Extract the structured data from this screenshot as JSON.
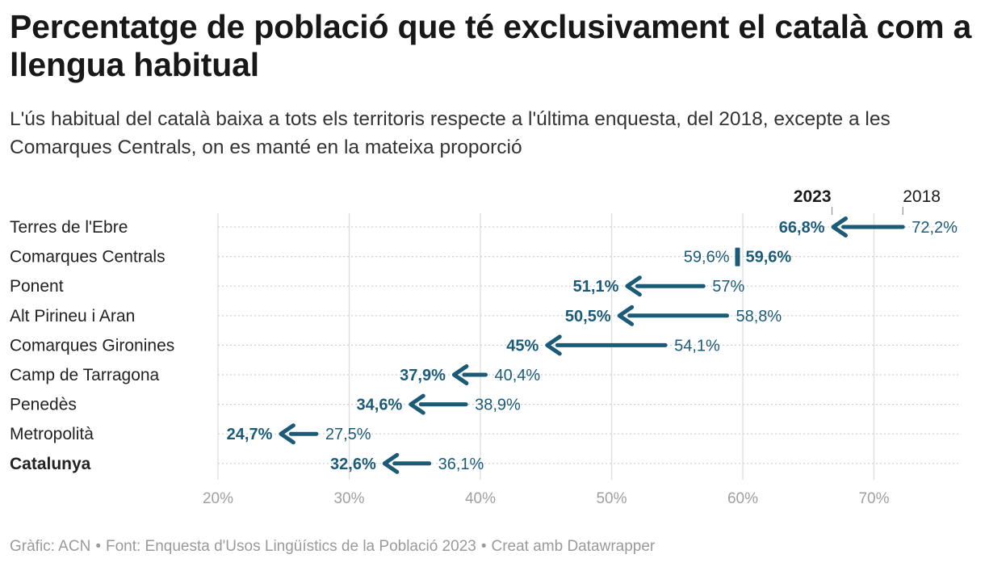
{
  "header": {
    "title": "Percentatge de població que té exclusivament el català com a llengua habitual",
    "subtitle": "L'ús habitual del català baixa a tots els territoris respecte a l'última enquesta, del 2018, excepte a les Comarques Centrals, on es manté en la mateixa proporció"
  },
  "footer": {
    "graphic": "Gràfic: ACN",
    "source": "Font: Enquesta d'Usos Lingüístics de la Població 2023",
    "tool": "Creat amb Datawrapper",
    "separator": "•"
  },
  "colors": {
    "arrow": "#1b5b78",
    "grid": "#dddddd",
    "dots": "#cfcfcf",
    "legend_tick": "#999999"
  },
  "chart_data": {
    "type": "arrow",
    "legend": {
      "new": "2023",
      "old": "2018"
    },
    "xlim": [
      20,
      75
    ],
    "ticks": [
      {
        "value": 20,
        "label": "20%"
      },
      {
        "value": 30,
        "label": "30%"
      },
      {
        "value": 40,
        "label": "40%"
      },
      {
        "value": 50,
        "label": "50%"
      },
      {
        "value": 60,
        "label": "60%"
      },
      {
        "value": 70,
        "label": "70%"
      }
    ],
    "rows": [
      {
        "label": "Terres de l'Ebre",
        "v2018": 72.2,
        "v2023": 66.8,
        "l2018": "72,2%",
        "l2023": "66,8%",
        "bold": false
      },
      {
        "label": "Comarques Centrals",
        "v2018": 59.6,
        "v2023": 59.6,
        "l2018": "59,6%",
        "l2023": "59,6%",
        "bold": false
      },
      {
        "label": "Ponent",
        "v2018": 57,
        "v2023": 51.1,
        "l2018": "57%",
        "l2023": "51,1%",
        "bold": false
      },
      {
        "label": "Alt Pirineu i Aran",
        "v2018": 58.8,
        "v2023": 50.5,
        "l2018": "58,8%",
        "l2023": "50,5%",
        "bold": false
      },
      {
        "label": "Comarques Gironines",
        "v2018": 54.1,
        "v2023": 45,
        "l2018": "54,1%",
        "l2023": "45%",
        "bold": false
      },
      {
        "label": "Camp de Tarragona",
        "v2018": 40.4,
        "v2023": 37.9,
        "l2018": "40,4%",
        "l2023": "37,9%",
        "bold": false
      },
      {
        "label": "Penedès",
        "v2018": 38.9,
        "v2023": 34.6,
        "l2018": "38,9%",
        "l2023": "34,6%",
        "bold": false
      },
      {
        "label": "Metropolità",
        "v2018": 27.5,
        "v2023": 24.7,
        "l2018": "27,5%",
        "l2023": "24,7%",
        "bold": false
      },
      {
        "label": "Catalunya",
        "v2018": 36.1,
        "v2023": 32.6,
        "l2018": "36,1%",
        "l2023": "32,6%",
        "bold": true
      }
    ]
  }
}
